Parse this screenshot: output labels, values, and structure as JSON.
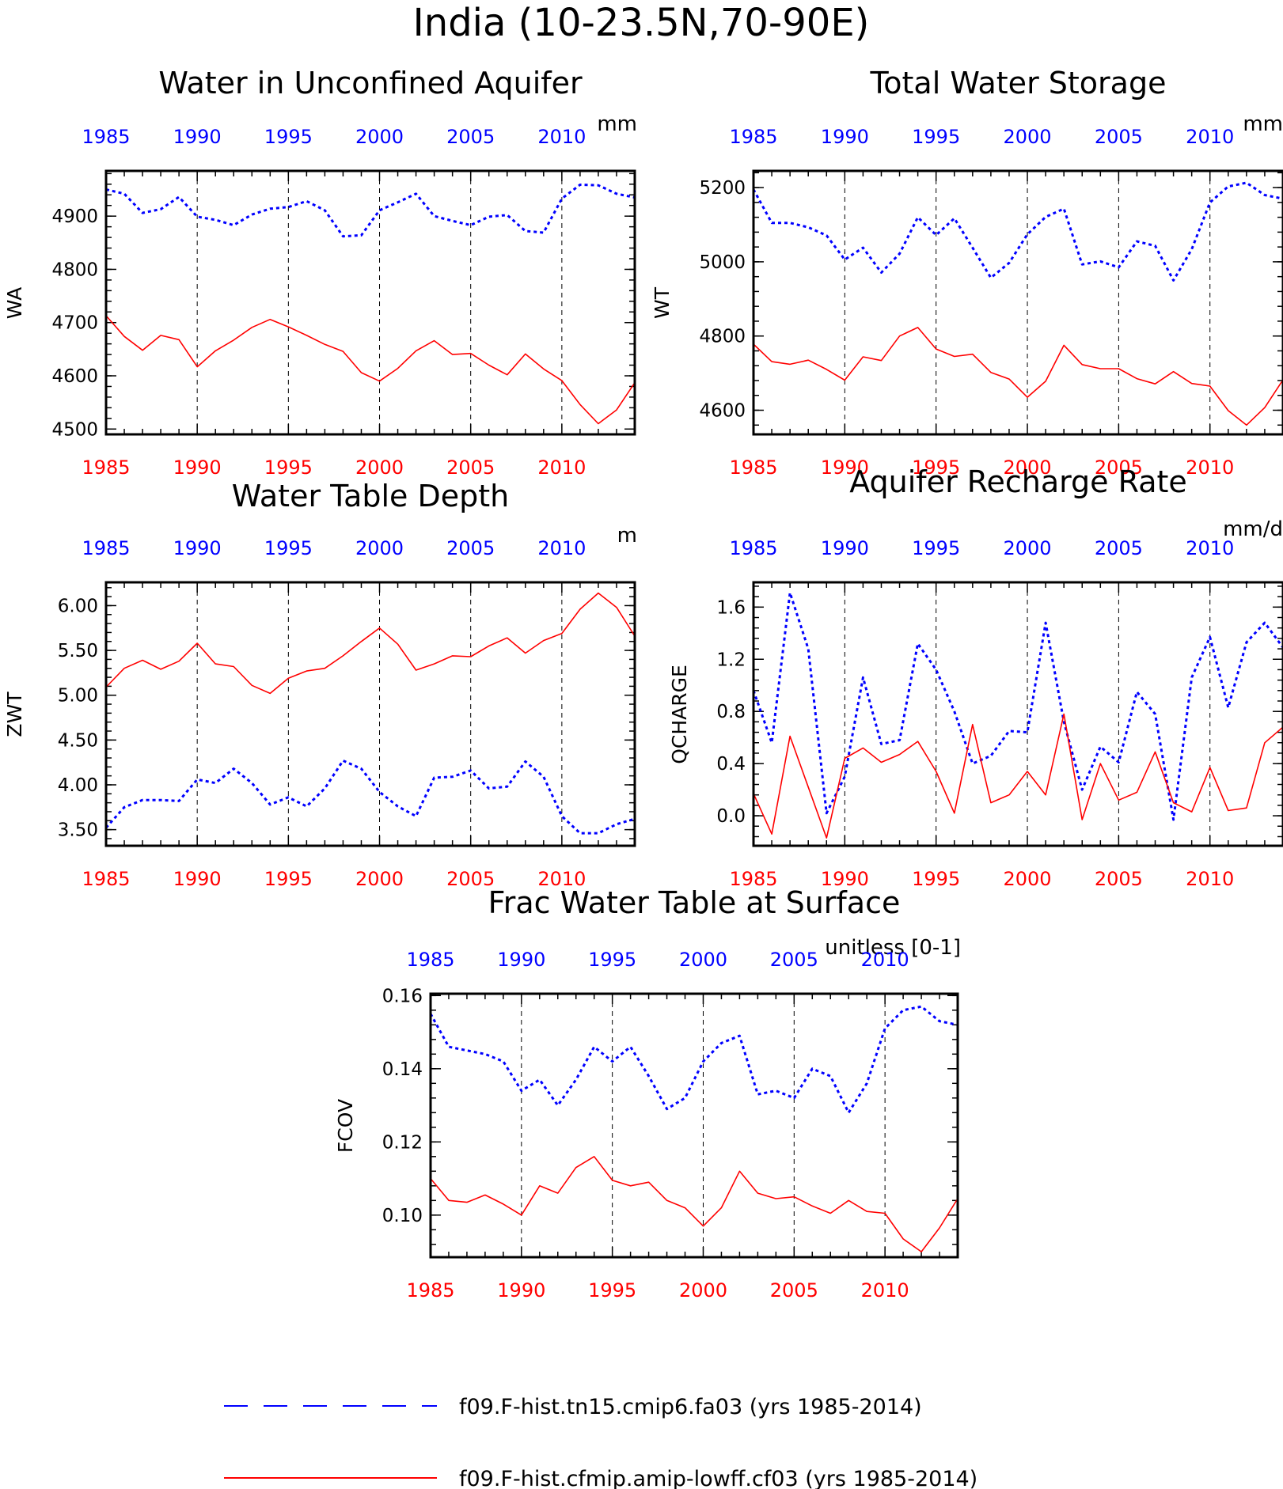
{
  "figure": {
    "title": "India (10-23.5N,70-90E)"
  },
  "colors": {
    "fa03": "#0000ff",
    "cf03": "#ff0000",
    "axis": "#000000",
    "grid": "#000000"
  },
  "legend": {
    "entries": [
      {
        "label": "f09.F-hist.tn15.cmip6.fa03 (yrs 1985-2014)",
        "color": "#0000ff",
        "style": "dashed"
      },
      {
        "label": "f09.F-hist.cfmip.amip-lowff.cf03 (yrs 1985-2014)",
        "color": "#ff0000",
        "style": "solid"
      }
    ]
  },
  "chart_data": [
    {
      "type": "line",
      "title": "Water in Unconfined Aquifer",
      "ylabel": "WA",
      "units": "mm",
      "x_ticks": [
        1985,
        1990,
        1995,
        2000,
        2005,
        2010
      ],
      "xlim": [
        1985,
        2014
      ],
      "ylim": [
        4490,
        4985
      ],
      "y_ticks": [
        4500,
        4600,
        4700,
        4800,
        4900
      ],
      "y_tick_labels": [
        "4500",
        "4600",
        "4700",
        "4800",
        "4900"
      ],
      "grid": "dashed vertical at x ticks",
      "x": [
        1985,
        1986,
        1987,
        1988,
        1989,
        1990,
        1991,
        1992,
        1993,
        1994,
        1995,
        1996,
        1997,
        1998,
        1999,
        2000,
        2001,
        2002,
        2003,
        2004,
        2005,
        2006,
        2007,
        2008,
        2009,
        2010,
        2011,
        2012,
        2013,
        2014
      ],
      "series": [
        {
          "name": "f09.F-hist.tn15.cmip6.fa03",
          "values": [
            4950,
            4942,
            4906,
            4913,
            4936,
            4899,
            4893,
            4883,
            4903,
            4914,
            4917,
            4928,
            4911,
            4862,
            4864,
            4911,
            4926,
            4942,
            4900,
            4891,
            4883,
            4899,
            4902,
            4872,
            4869,
            4933,
            4959,
            4958,
            4942,
            4935
          ]
        },
        {
          "name": "f09.F-hist.cfmip.amip-lowff.cf03",
          "values": [
            4713,
            4674,
            4648,
            4676,
            4668,
            4617,
            4647,
            4667,
            4691,
            4706,
            4692,
            4676,
            4659,
            4646,
            4606,
            4590,
            4614,
            4647,
            4666,
            4640,
            4642,
            4620,
            4602,
            4641,
            4613,
            4591,
            4546,
            4510,
            4536,
            4587
          ]
        }
      ]
    },
    {
      "type": "line",
      "title": "Total Water Storage",
      "ylabel": "WT",
      "units": "mm",
      "x_ticks": [
        1985,
        1990,
        1995,
        2000,
        2005,
        2010
      ],
      "xlim": [
        1985,
        2014
      ],
      "ylim": [
        4535,
        5245
      ],
      "y_ticks": [
        4600,
        4800,
        5000,
        5200
      ],
      "y_tick_labels": [
        "4600",
        "4800",
        "5000",
        "5200"
      ],
      "grid": "dashed vertical at x ticks",
      "x": [
        1985,
        1986,
        1987,
        1988,
        1989,
        1990,
        1991,
        1992,
        1993,
        1994,
        1995,
        1996,
        1997,
        1998,
        1999,
        2000,
        2001,
        2002,
        2003,
        2004,
        2005,
        2006,
        2007,
        2008,
        2009,
        2010,
        2011,
        2012,
        2013,
        2014
      ],
      "series": [
        {
          "name": "f09.F-hist.tn15.cmip6.fa03",
          "values": [
            5195,
            5105,
            5105,
            5093,
            5071,
            5006,
            5038,
            4971,
            5022,
            5120,
            5072,
            5117,
            5038,
            4957,
            4997,
            5074,
            5121,
            5143,
            4993,
            5001,
            4985,
            5055,
            5043,
            4950,
            5034,
            5160,
            5203,
            5213,
            5180,
            5170
          ]
        },
        {
          "name": "f09.F-hist.cfmip.amip-lowff.cf03",
          "values": [
            4778,
            4731,
            4724,
            4735,
            4710,
            4681,
            4744,
            4734,
            4800,
            4823,
            4765,
            4745,
            4751,
            4702,
            4684,
            4635,
            4678,
            4775,
            4723,
            4712,
            4712,
            4685,
            4671,
            4704,
            4672,
            4665,
            4599,
            4560,
            4607,
            4682
          ]
        }
      ]
    },
    {
      "type": "line",
      "title": "Water Table Depth",
      "ylabel": "ZWT",
      "units": "m",
      "x_ticks": [
        1985,
        1990,
        1995,
        2000,
        2005,
        2010
      ],
      "xlim": [
        1985,
        2014
      ],
      "ylim": [
        3.32,
        6.26
      ],
      "y_ticks": [
        3.5,
        4.0,
        4.5,
        5.0,
        5.5,
        6.0
      ],
      "y_tick_labels": [
        "3.50",
        "4.00",
        "4.50",
        "5.00",
        "5.50",
        "6.00"
      ],
      "grid": "dashed vertical at x ticks",
      "x": [
        1985,
        1986,
        1987,
        1988,
        1989,
        1990,
        1991,
        1992,
        1993,
        1994,
        1995,
        1996,
        1997,
        1998,
        1999,
        2000,
        2001,
        2002,
        2003,
        2004,
        2005,
        2006,
        2007,
        2008,
        2009,
        2010,
        2011,
        2012,
        2013,
        2014
      ],
      "series": [
        {
          "name": "f09.F-hist.tn15.cmip6.fa03",
          "values": [
            3.52,
            3.75,
            3.83,
            3.83,
            3.82,
            4.06,
            4.02,
            4.18,
            4.02,
            3.78,
            3.86,
            3.76,
            3.96,
            4.27,
            4.18,
            3.92,
            3.76,
            3.65,
            4.08,
            4.09,
            4.16,
            3.96,
            3.98,
            4.26,
            4.09,
            3.65,
            3.46,
            3.46,
            3.56,
            3.62
          ]
        },
        {
          "name": "f09.F-hist.cfmip.amip-lowff.cf03",
          "values": [
            5.09,
            5.3,
            5.39,
            5.29,
            5.38,
            5.58,
            5.35,
            5.32,
            5.11,
            5.02,
            5.19,
            5.27,
            5.3,
            5.44,
            5.6,
            5.75,
            5.57,
            5.28,
            5.35,
            5.44,
            5.43,
            5.55,
            5.64,
            5.47,
            5.61,
            5.69,
            5.96,
            6.14,
            5.98,
            5.66
          ]
        }
      ]
    },
    {
      "type": "line",
      "title": "Aquifer Recharge Rate",
      "ylabel": "QCHARGE",
      "units": "mm/d",
      "x_ticks": [
        1985,
        1990,
        1995,
        2000,
        2005,
        2010
      ],
      "xlim": [
        1985,
        2014
      ],
      "ylim": [
        -0.23,
        1.79
      ],
      "y_ticks": [
        0.0,
        0.4,
        0.8,
        1.2,
        1.6
      ],
      "y_tick_labels": [
        "0.0",
        "0.4",
        "0.8",
        "1.2",
        "1.6"
      ],
      "grid": "dashed vertical at x ticks",
      "x": [
        1985,
        1986,
        1987,
        1988,
        1989,
        1990,
        1991,
        1992,
        1993,
        1994,
        1995,
        1996,
        1997,
        1998,
        1999,
        2000,
        2001,
        2002,
        2003,
        2004,
        2005,
        2006,
        2007,
        2008,
        2009,
        2010,
        2011,
        2012,
        2013,
        2014
      ],
      "series": [
        {
          "name": "f09.F-hist.tn15.cmip6.fa03",
          "values": [
            0.96,
            0.56,
            1.71,
            1.28,
            0.02,
            0.3,
            1.06,
            0.55,
            0.58,
            1.32,
            1.12,
            0.8,
            0.4,
            0.46,
            0.65,
            0.64,
            1.48,
            0.72,
            0.2,
            0.53,
            0.41,
            0.95,
            0.78,
            -0.03,
            1.06,
            1.37,
            0.83,
            1.33,
            1.48,
            1.29
          ]
        },
        {
          "name": "f09.F-hist.cfmip.amip-lowff.cf03",
          "values": [
            0.17,
            -0.14,
            0.61,
            0.22,
            -0.17,
            0.44,
            0.52,
            0.41,
            0.47,
            0.57,
            0.34,
            0.02,
            0.7,
            0.1,
            0.16,
            0.34,
            0.16,
            0.78,
            -0.03,
            0.4,
            0.12,
            0.18,
            0.49,
            0.1,
            0.03,
            0.37,
            0.04,
            0.06,
            0.56,
            0.68
          ]
        }
      ]
    },
    {
      "type": "line",
      "title": "Frac Water Table at Surface",
      "ylabel": "FCOV",
      "units": "unitless [0-1]",
      "x_ticks": [
        1985,
        1990,
        1995,
        2000,
        2005,
        2010
      ],
      "xlim": [
        1985,
        2014
      ],
      "ylim": [
        0.0885,
        0.1605
      ],
      "y_ticks": [
        0.1,
        0.12,
        0.14,
        0.16
      ],
      "y_tick_labels": [
        "0.10",
        "0.12",
        "0.14",
        "0.16"
      ],
      "grid": "dashed vertical at x ticks",
      "x": [
        1985,
        1986,
        1987,
        1988,
        1989,
        1990,
        1991,
        1992,
        1993,
        1994,
        1995,
        1996,
        1997,
        1998,
        1999,
        2000,
        2001,
        2002,
        2003,
        2004,
        2005,
        2006,
        2007,
        2008,
        2009,
        2010,
        2011,
        2012,
        2013,
        2014
      ],
      "series": [
        {
          "name": "f09.F-hist.tn15.cmip6.fa03",
          "values": [
            0.155,
            0.146,
            0.145,
            0.144,
            0.142,
            0.134,
            0.137,
            0.13,
            0.137,
            0.146,
            0.142,
            0.146,
            0.138,
            0.129,
            0.132,
            0.142,
            0.147,
            0.149,
            0.133,
            0.134,
            0.132,
            0.14,
            0.138,
            0.128,
            0.136,
            0.151,
            0.156,
            0.157,
            0.153,
            0.152
          ]
        },
        {
          "name": "f09.F-hist.cfmip.amip-lowff.cf03",
          "values": [
            0.11,
            0.104,
            0.1035,
            0.1055,
            0.103,
            0.1,
            0.108,
            0.106,
            0.113,
            0.116,
            0.1095,
            0.108,
            0.109,
            0.104,
            0.102,
            0.097,
            0.102,
            0.112,
            0.106,
            0.1045,
            0.105,
            0.1025,
            0.1005,
            0.104,
            0.101,
            0.1005,
            0.0935,
            0.09,
            0.0965,
            0.1045
          ]
        }
      ]
    }
  ]
}
